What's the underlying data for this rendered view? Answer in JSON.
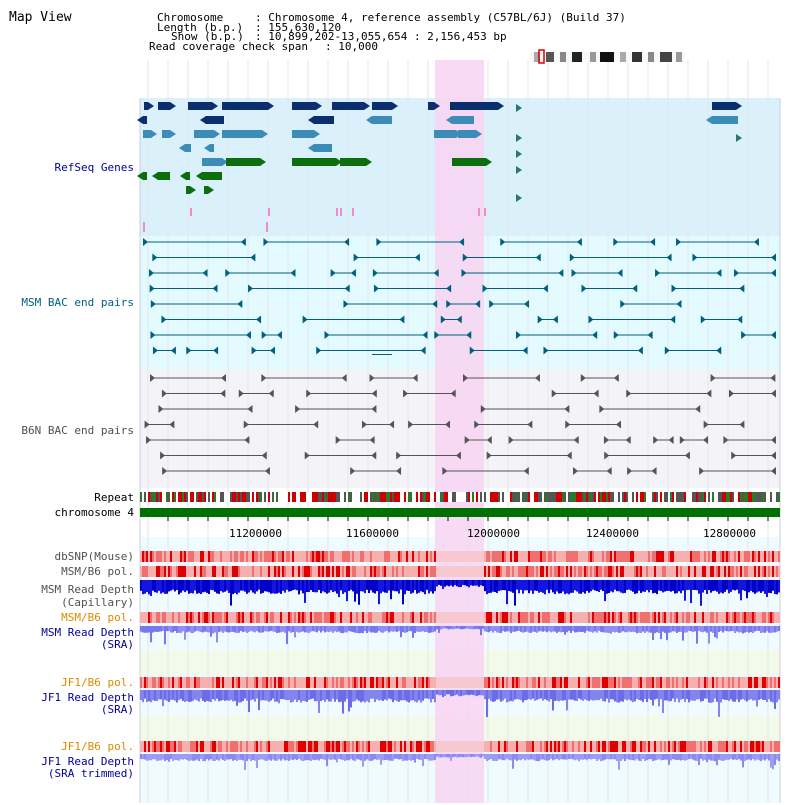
{
  "page_title": "Map View",
  "info": {
    "chromosome_key": "Chromosome",
    "chromosome_val": ": Chromosome 4, reference assembly (C57BL/6J) (Build 37)",
    "length_key": "Length (b.p.)",
    "length_val": ": 155,630,120",
    "show_key": "Show (b.p.)",
    "show_val": ": 10,899,202-13,055,654 : 2,156,453 bp",
    "coverage_key": "Read coverage check span",
    "coverage_val": ": 10,000"
  },
  "tracks": {
    "refseq": "RefSeq Genes",
    "msm_bac": "MSM BAC end pairs",
    "b6n_bac": "B6N BAC end pairs",
    "repeat": "Repeat",
    "chrom": "chromosome 4",
    "dbsnp": "dbSNP(Mouse)",
    "msm_b6_pol": "MSM/B6 pol.",
    "msm_depth_cap_1": "MSM Read Depth",
    "msm_depth_cap_2": "(Capillary)",
    "msm_b6_pol2": "MSM/B6 pol.",
    "msm_depth_sra_1": "MSM Read Depth",
    "msm_depth_sra_2": "(SRA)",
    "jf1_b6_pol": "JF1/B6 pol.",
    "jf1_depth_sra_1": "JF1 Read Depth",
    "jf1_depth_sra_2": "(SRA)",
    "jf1_b6_pol2": "JF1/B6 pol.",
    "jf1_depth_tr_1": "JF1 Read Depth",
    "jf1_depth_tr_2": "(SRA trimmed)"
  },
  "axis": {
    "ticks": [
      "11200000",
      "11600000",
      "12000000",
      "12400000",
      "12800000"
    ]
  },
  "colors": {
    "refseq_bg": "#daf0fa",
    "msm_bg": "#e3faff",
    "b6n_bg": "#f4f4f8",
    "highlight": "#f8d4f2",
    "chrom_bar": "#007000",
    "gene_dark": "#0b2f6e",
    "gene_mid": "#3c8cb8",
    "gene_green": "#0c6e0c",
    "msm_line": "#00607e",
    "b6n_line": "#555555"
  }
}
